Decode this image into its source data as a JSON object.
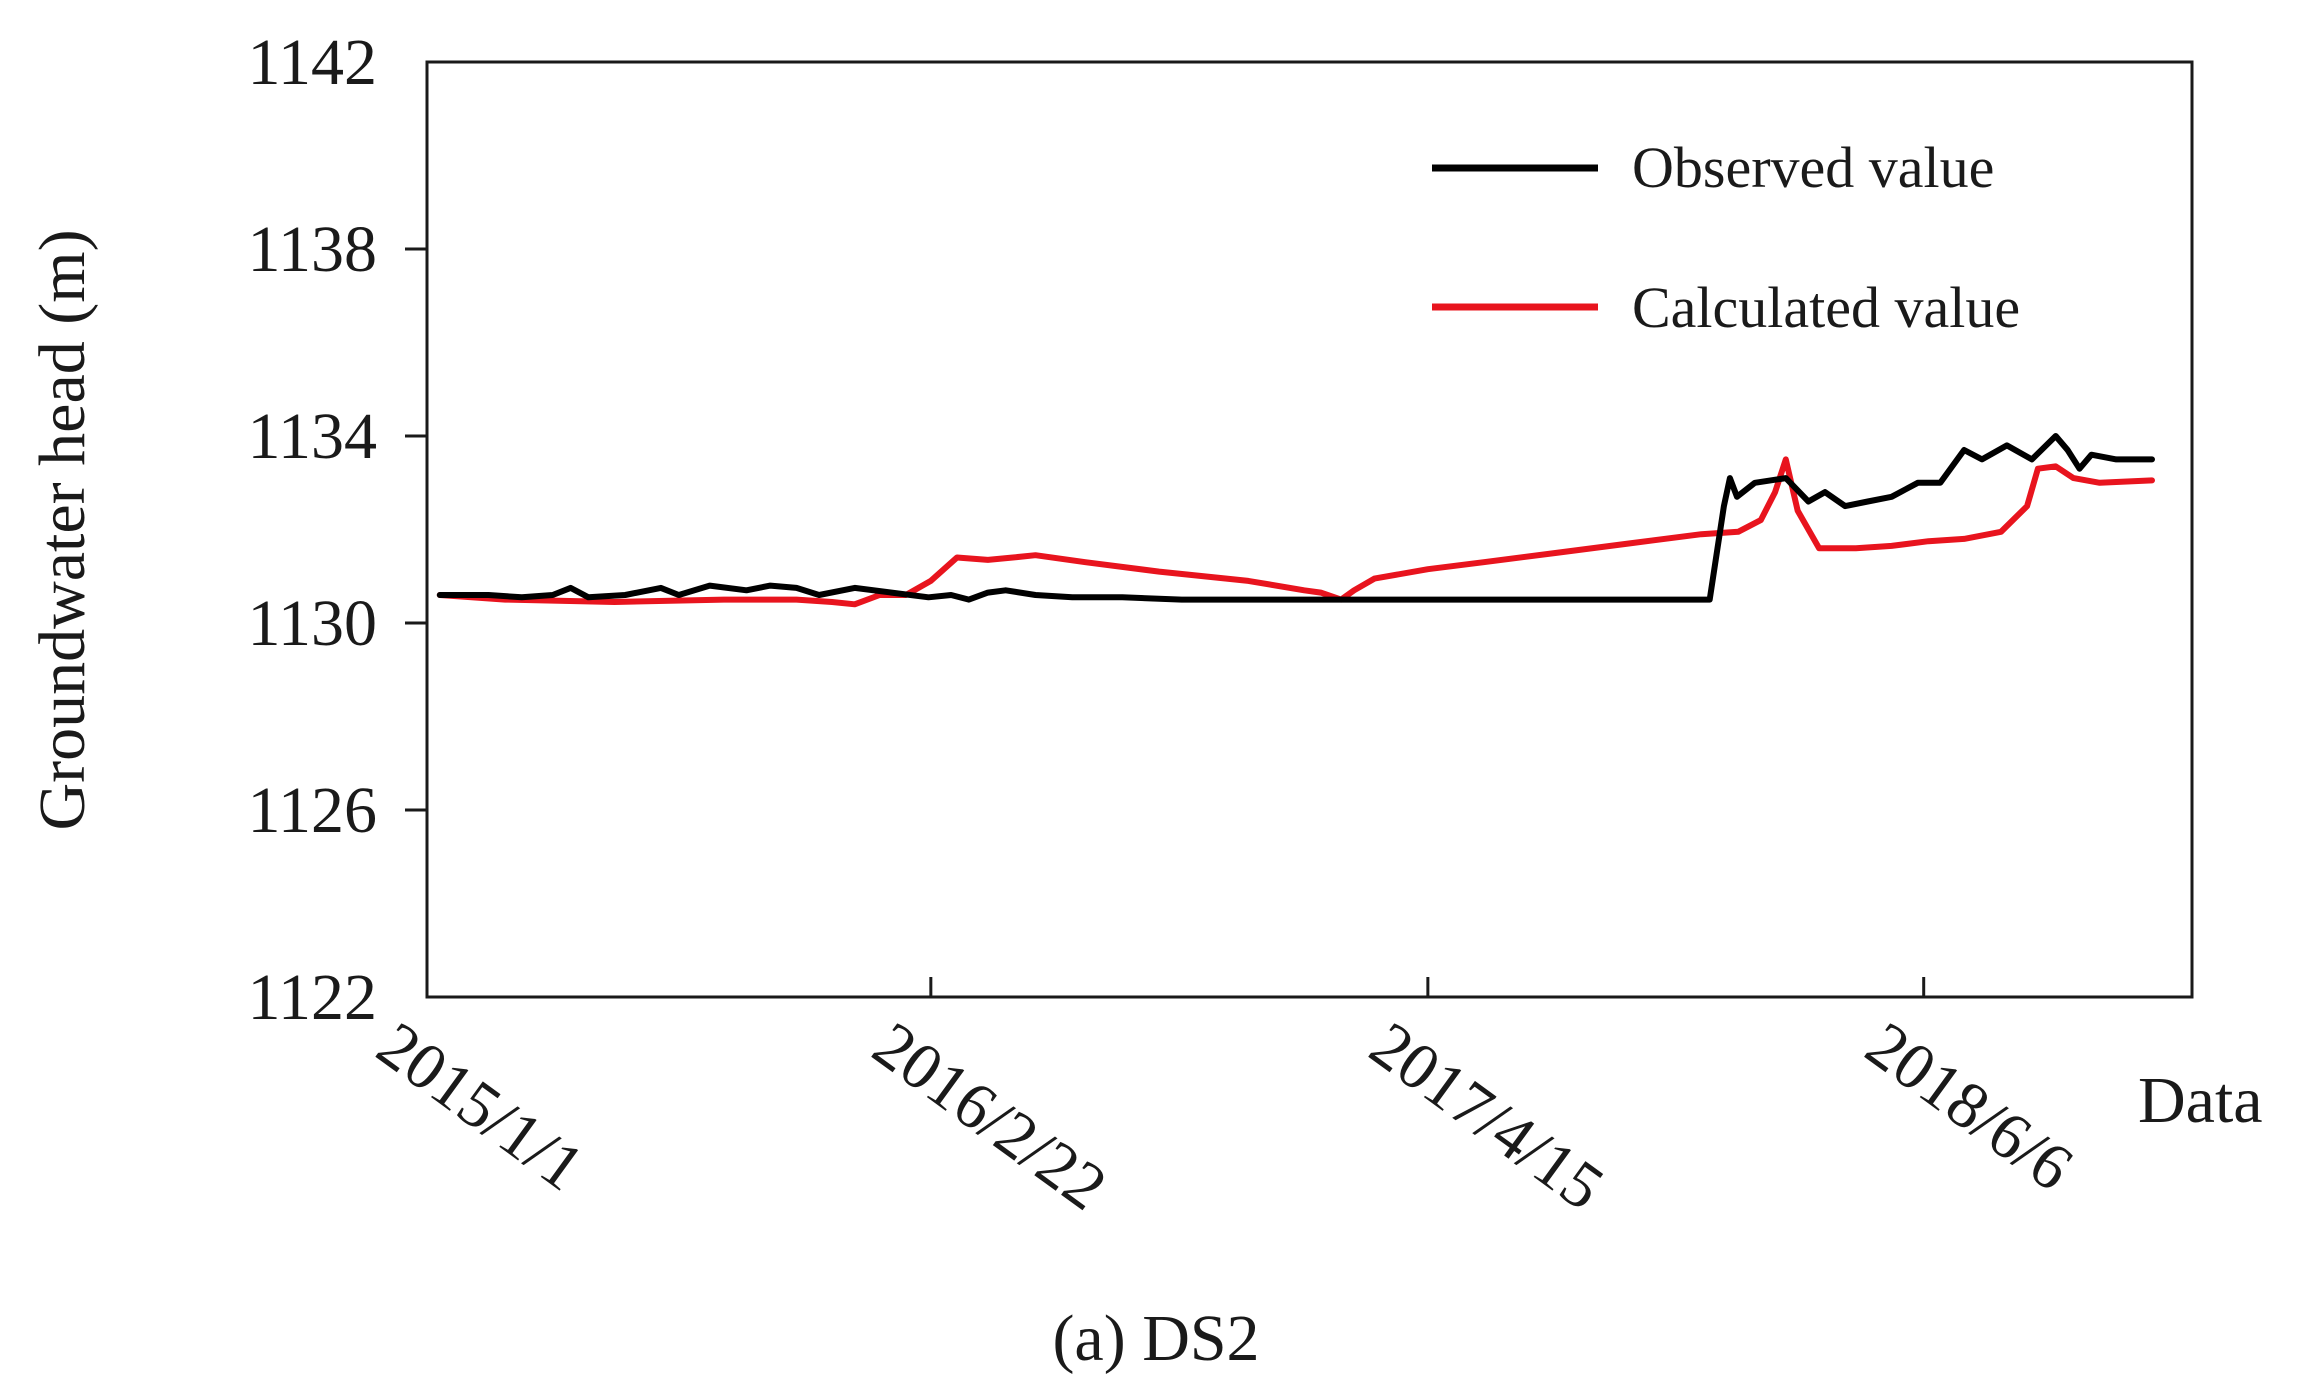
{
  "chart_data": {
    "type": "line",
    "title": "",
    "caption": "(a) DS2",
    "xlabel": "Data",
    "ylabel": "Groundwater head (m)",
    "ylim": [
      1122,
      1142
    ],
    "yticks": [
      "1142",
      "1138",
      "1134",
      "1130",
      "1126",
      "1122"
    ],
    "yticks_values": [
      1142,
      1138,
      1134,
      1130,
      1126,
      1122
    ],
    "xlim": [
      "2015-01-01",
      "2018-12-15"
    ],
    "xticks": [
      "2015/1/1",
      "2016/2/22",
      "2017/4/15",
      "2018/6/6"
    ],
    "xticks_values": [
      "2015-01-01",
      "2016-02-22",
      "2017-04-15",
      "2018-06-06"
    ],
    "grid": false,
    "legend_position": "top-right",
    "series": [
      {
        "name": "Observed value",
        "color": "#000000",
        "x": [
          "2015-01-05",
          "2015-02-15",
          "2015-03-15",
          "2015-04-10",
          "2015-04-25",
          "2015-05-10",
          "2015-06-10",
          "2015-07-10",
          "2015-07-25",
          "2015-08-20",
          "2015-09-20",
          "2015-10-10",
          "2015-11-01",
          "2015-11-20",
          "2015-12-20",
          "2016-01-20",
          "2016-02-20",
          "2016-03-10",
          "2016-03-25",
          "2016-04-10",
          "2016-04-25",
          "2016-05-20",
          "2016-06-20",
          "2016-08-01",
          "2016-09-20",
          "2016-11-01",
          "2016-12-31",
          "2017-03-01",
          "2017-06-01",
          "2017-09-01",
          "2017-11-01",
          "2017-12-01",
          "2017-12-08",
          "2017-12-20",
          "2017-12-25",
          "2017-12-31",
          "2018-01-15",
          "2018-02-10",
          "2018-03-01",
          "2018-03-15",
          "2018-04-01",
          "2018-04-20",
          "2018-05-10",
          "2018-06-01",
          "2018-06-20",
          "2018-07-10",
          "2018-07-25",
          "2018-08-15",
          "2018-09-05",
          "2018-09-25",
          "2018-10-05",
          "2018-10-15",
          "2018-10-25",
          "2018-11-15",
          "2018-12-15"
        ],
        "y": [
          1130.6,
          1130.6,
          1130.55,
          1130.6,
          1130.75,
          1130.55,
          1130.6,
          1130.75,
          1130.6,
          1130.8,
          1130.7,
          1130.8,
          1130.75,
          1130.6,
          1130.75,
          1130.65,
          1130.55,
          1130.6,
          1130.5,
          1130.65,
          1130.7,
          1130.6,
          1130.55,
          1130.55,
          1130.5,
          1130.5,
          1130.5,
          1130.5,
          1130.5,
          1130.5,
          1130.5,
          1130.5,
          1130.5,
          1132.5,
          1133.1,
          1132.7,
          1133.0,
          1133.1,
          1132.6,
          1132.8,
          1132.5,
          1132.6,
          1132.7,
          1133.0,
          1133.0,
          1133.7,
          1133.5,
          1133.8,
          1133.5,
          1134.0,
          1133.7,
          1133.3,
          1133.6,
          1133.5,
          1133.5
        ]
      },
      {
        "name": "Calculated value",
        "color": "#e8141e",
        "x": [
          "2015-01-05",
          "2015-03-01",
          "2015-06-01",
          "2015-09-01",
          "2015-11-01",
          "2015-12-01",
          "2015-12-20",
          "2016-01-10",
          "2016-02-01",
          "2016-02-22",
          "2016-03-15",
          "2016-04-10",
          "2016-05-01",
          "2016-05-20",
          "2016-07-01",
          "2016-09-01",
          "2016-11-15",
          "2017-01-01",
          "2017-01-15",
          "2017-02-01",
          "2017-02-12",
          "2017-03-01",
          "2017-04-15",
          "2017-06-01",
          "2017-08-01",
          "2017-10-01",
          "2017-12-01",
          "2018-01-01",
          "2018-01-20",
          "2018-02-01",
          "2018-02-10",
          "2018-02-20",
          "2018-03-10",
          "2018-04-10",
          "2018-05-10",
          "2018-06-10",
          "2018-07-10",
          "2018-08-10",
          "2018-09-01",
          "2018-09-10",
          "2018-09-25",
          "2018-10-10",
          "2018-11-01",
          "2018-12-15"
        ],
        "y": [
          1130.6,
          1130.5,
          1130.45,
          1130.5,
          1130.5,
          1130.45,
          1130.4,
          1130.6,
          1130.6,
          1130.9,
          1131.4,
          1131.35,
          1131.4,
          1131.45,
          1131.3,
          1131.1,
          1130.9,
          1130.7,
          1130.65,
          1130.5,
          1130.7,
          1130.95,
          1131.15,
          1131.3,
          1131.5,
          1131.7,
          1131.9,
          1131.95,
          1132.2,
          1132.8,
          1133.5,
          1132.4,
          1131.6,
          1131.6,
          1131.65,
          1131.75,
          1131.8,
          1131.95,
          1132.5,
          1133.3,
          1133.35,
          1133.1,
          1133.0,
          1133.05
        ]
      }
    ]
  }
}
